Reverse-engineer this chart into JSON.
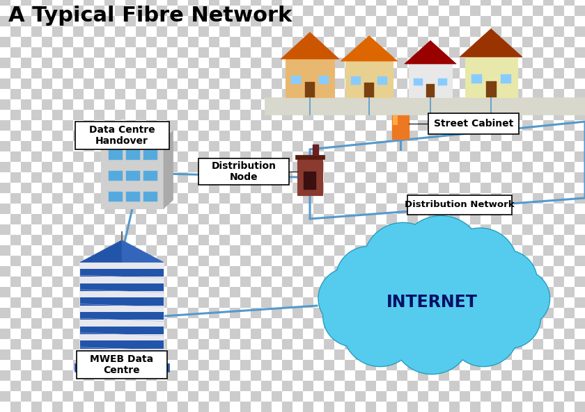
{
  "title": "A Typical Fibre Network",
  "title_fontsize": 22,
  "title_fontweight": "bold",
  "checker_light": "#ffffff",
  "checker_dark": "#cccccc",
  "checker_size": 15,
  "line_color": "#5599cc",
  "line_width": 2.2,
  "labels": {
    "street_cabinet": "Street Cabinet",
    "distribution_node": "Distribution\nNode",
    "distribution_network": "Distribution Network",
    "data_centre_handover": "Data Centre\nHandover",
    "mweb_data_centre": "MWEB Data\nCentre",
    "internet": "INTERNET"
  },
  "label_box_color": "#ffffff",
  "label_box_edge": "#000000",
  "internet_color": "#55ccee",
  "internet_outline": "#2299bb",
  "street_cabinet_color": "#ee7722",
  "dist_node_wall": "#8b3a30",
  "dist_node_roof": "#5a1a10",
  "road_color": "#d8d8cc",
  "road_edge": "#bbbbaa",
  "building_blue": "#2255aa",
  "building_white": "#e8e8f0",
  "building_outline": "#aaaacc",
  "small_bld_body": "#d0d0d0",
  "small_bld_win": "#55aadd",
  "small_bld_roof": "#bbbbbb"
}
